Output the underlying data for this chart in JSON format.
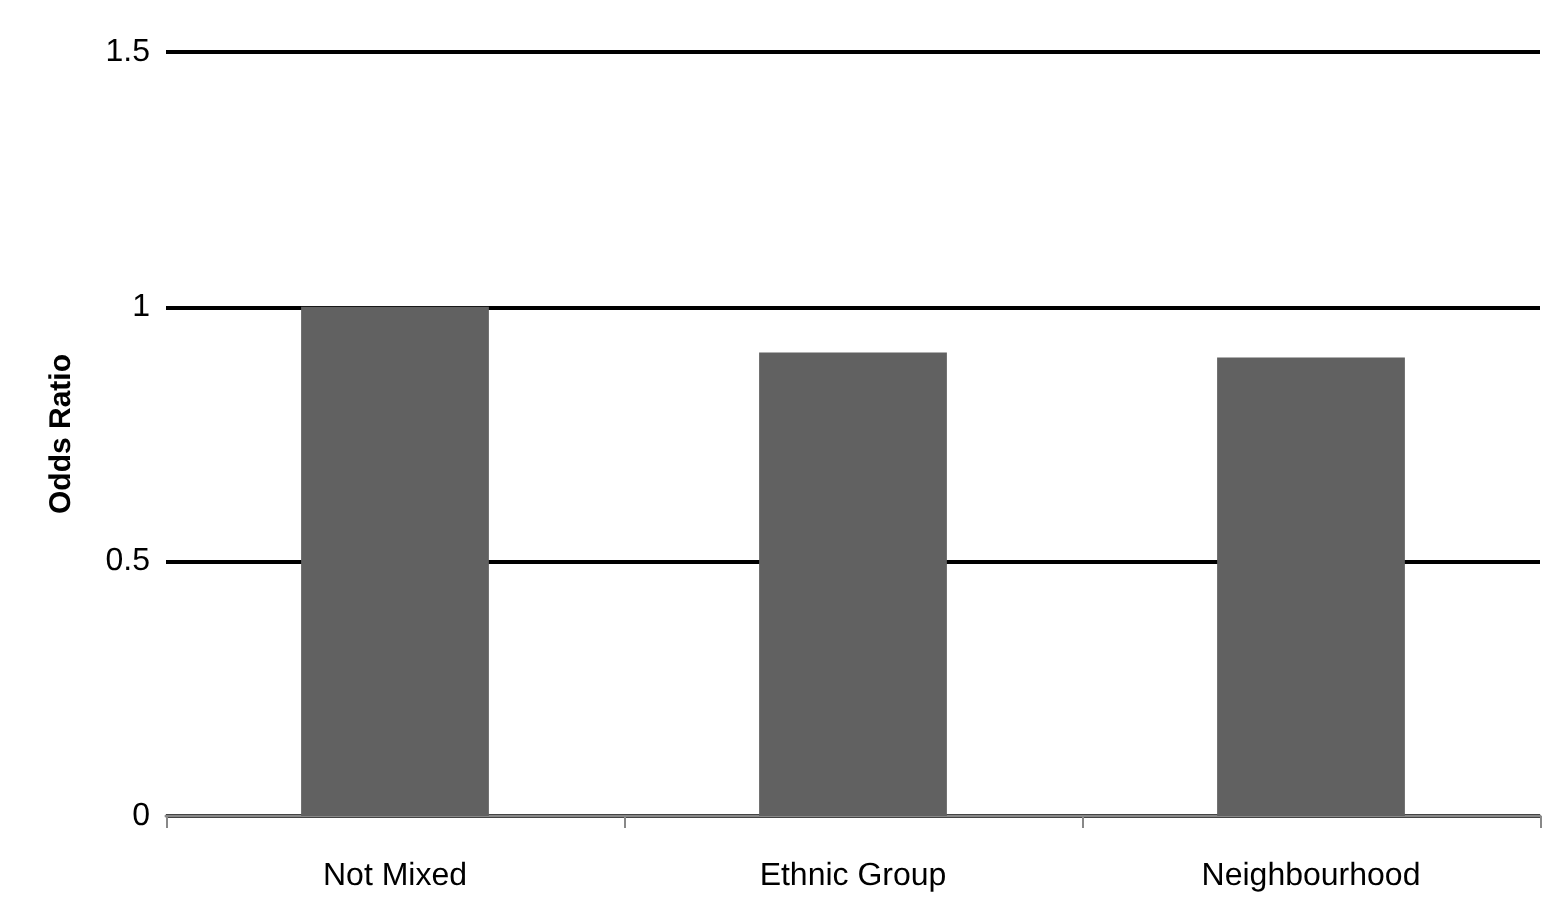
{
  "chart_data": {
    "type": "bar",
    "ylabel": "Odds Ratio",
    "categories": [
      "Not Mixed",
      "Ethnic Group",
      "Neighbourhood"
    ],
    "values": [
      1.0,
      0.91,
      0.9
    ],
    "color": "#616161",
    "ylim": [
      0,
      1.5
    ],
    "yticks": [
      0,
      0.5,
      1,
      1.5
    ],
    "grid": "y"
  }
}
